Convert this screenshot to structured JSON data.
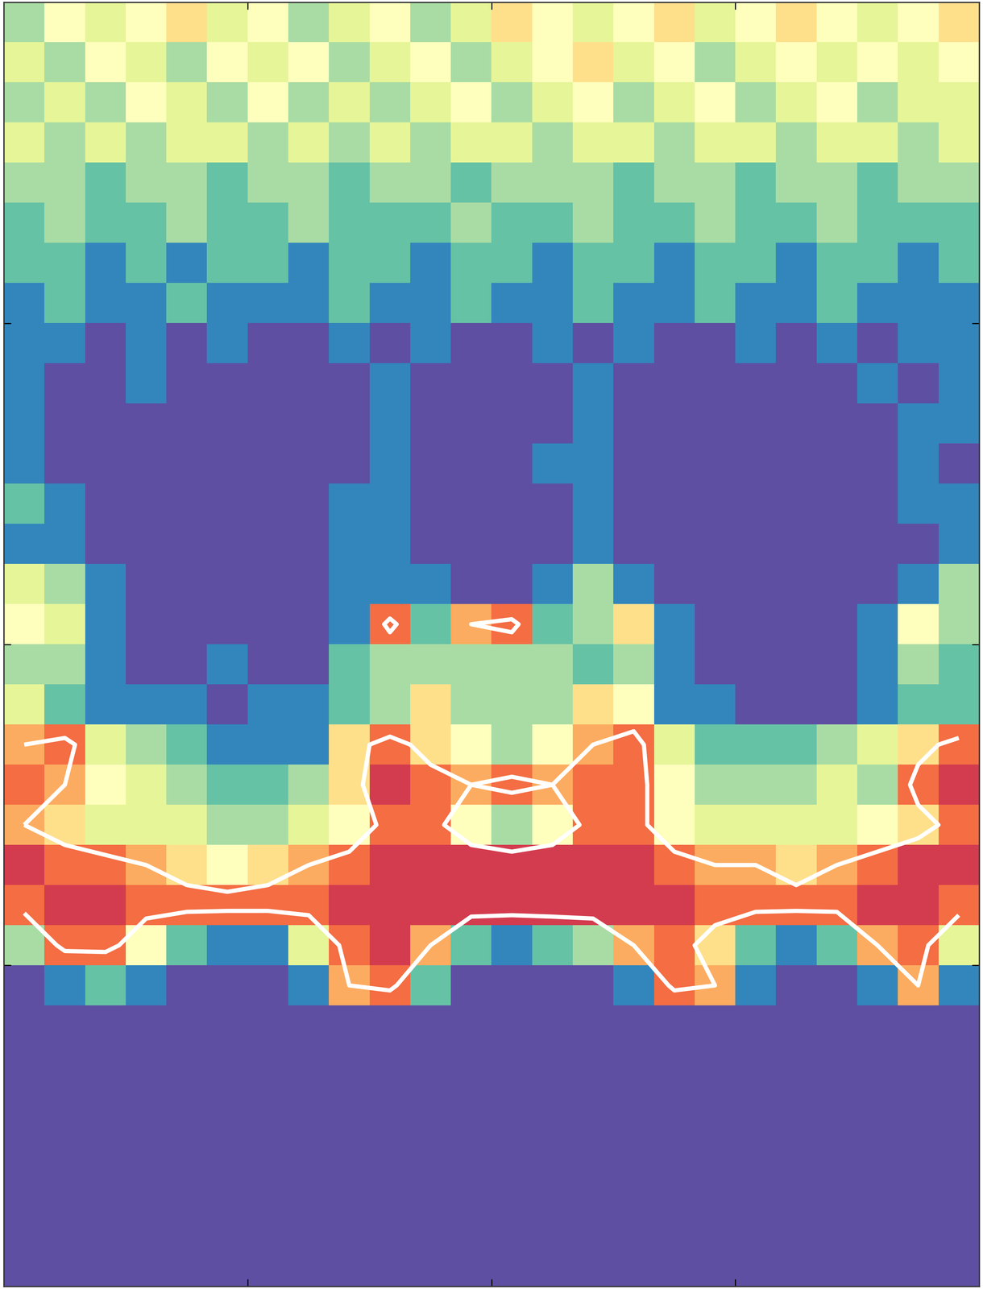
{
  "chart_data": {
    "type": "heatmap",
    "xlim": [
      0,
      4
    ],
    "ylim": [
      0,
      4
    ],
    "xticks": [
      1,
      2,
      3
    ],
    "yticks": [
      1,
      2,
      3
    ],
    "tick_labels": false,
    "color_range": [
      0,
      10
    ],
    "contour_levels": [
      7
    ],
    "cells": [
      [
        3,
        5,
        4,
        5,
        6,
        4,
        5,
        3,
        4,
        5,
        3,
        4,
        6,
        5,
        4,
        5,
        6,
        4,
        5,
        6,
        5,
        4,
        5,
        6
      ],
      [
        4,
        3,
        5,
        4,
        3,
        5,
        4,
        5,
        3,
        4,
        5,
        3,
        4,
        5,
        6,
        4,
        5,
        3,
        4,
        5,
        4,
        5,
        4,
        5
      ],
      [
        3,
        4,
        3,
        5,
        4,
        3,
        5,
        3,
        4,
        3,
        4,
        5,
        3,
        4,
        5,
        3,
        4,
        5,
        3,
        4,
        5,
        3,
        4,
        4
      ],
      [
        4,
        3,
        4,
        3,
        4,
        4,
        3,
        4,
        3,
        4,
        3,
        4,
        4,
        3,
        4,
        4,
        3,
        4,
        4,
        3,
        4,
        4,
        3,
        4
      ],
      [
        3,
        3,
        2,
        3,
        3,
        2,
        3,
        3,
        2,
        3,
        3,
        2,
        3,
        3,
        3,
        2,
        3,
        3,
        2,
        3,
        3,
        2,
        3,
        3
      ],
      [
        2,
        3,
        2,
        2,
        3,
        2,
        2,
        3,
        2,
        2,
        2,
        3,
        2,
        2,
        3,
        2,
        2,
        3,
        2,
        2,
        3,
        2,
        2,
        2
      ],
      [
        2,
        2,
        1,
        2,
        1,
        2,
        2,
        1,
        2,
        2,
        1,
        2,
        2,
        1,
        2,
        2,
        1,
        2,
        2,
        1,
        2,
        2,
        1,
        2
      ],
      [
        1,
        2,
        1,
        1,
        2,
        1,
        1,
        1,
        2,
        1,
        1,
        2,
        1,
        1,
        2,
        1,
        1,
        2,
        1,
        1,
        2,
        1,
        1,
        1
      ],
      [
        1,
        1,
        0,
        1,
        0,
        1,
        0,
        0,
        1,
        0,
        1,
        0,
        0,
        1,
        0,
        1,
        0,
        0,
        1,
        0,
        1,
        0,
        1,
        1
      ],
      [
        1,
        0,
        0,
        1,
        0,
        0,
        0,
        0,
        0,
        1,
        0,
        0,
        0,
        0,
        1,
        0,
        0,
        0,
        0,
        0,
        0,
        1,
        0,
        1
      ],
      [
        1,
        0,
        0,
        0,
        0,
        0,
        0,
        0,
        0,
        1,
        0,
        0,
        0,
        0,
        1,
        0,
        0,
        0,
        0,
        0,
        0,
        0,
        1,
        1
      ],
      [
        1,
        0,
        0,
        0,
        0,
        0,
        0,
        0,
        0,
        1,
        0,
        0,
        0,
        1,
        1,
        0,
        0,
        0,
        0,
        0,
        0,
        0,
        1,
        0
      ],
      [
        2,
        1,
        0,
        0,
        0,
        0,
        0,
        0,
        1,
        1,
        0,
        0,
        0,
        0,
        1,
        0,
        0,
        0,
        0,
        0,
        0,
        0,
        1,
        1
      ],
      [
        1,
        1,
        0,
        0,
        0,
        0,
        0,
        0,
        1,
        1,
        0,
        0,
        0,
        0,
        1,
        0,
        0,
        0,
        0,
        0,
        0,
        0,
        0,
        1
      ],
      [
        4,
        3,
        1,
        0,
        0,
        0,
        0,
        0,
        1,
        1,
        1,
        0,
        0,
        1,
        3,
        1,
        0,
        0,
        0,
        0,
        0,
        0,
        1,
        3
      ],
      [
        5,
        4,
        1,
        0,
        0,
        0,
        0,
        0,
        1,
        8,
        2,
        7,
        8,
        2,
        3,
        6,
        1,
        0,
        0,
        0,
        0,
        1,
        5,
        3
      ],
      [
        3,
        3,
        1,
        0,
        0,
        1,
        0,
        0,
        2,
        3,
        3,
        3,
        3,
        3,
        2,
        3,
        1,
        0,
        0,
        0,
        0,
        1,
        3,
        2
      ],
      [
        4,
        2,
        1,
        1,
        1,
        0,
        1,
        1,
        2,
        3,
        6,
        3,
        3,
        3,
        6,
        5,
        1,
        1,
        0,
        0,
        0,
        1,
        2,
        2
      ],
      [
        7,
        8,
        4,
        3,
        2,
        1,
        1,
        1,
        6,
        8,
        6,
        5,
        3,
        5,
        7,
        8,
        4,
        2,
        2,
        2,
        3,
        4,
        6,
        8
      ],
      [
        8,
        7,
        5,
        4,
        3,
        2,
        2,
        3,
        6,
        9,
        8,
        7,
        8,
        7,
        8,
        8,
        5,
        3,
        3,
        3,
        4,
        3,
        8,
        9
      ],
      [
        7,
        6,
        4,
        4,
        4,
        3,
        3,
        4,
        5,
        8,
        8,
        5,
        3,
        5,
        8,
        8,
        5,
        4,
        4,
        4,
        4,
        5,
        6,
        8
      ],
      [
        9,
        8,
        8,
        7,
        6,
        5,
        6,
        7,
        8,
        9,
        9,
        9,
        9,
        9,
        9,
        9,
        8,
        7,
        7,
        6,
        7,
        8,
        9,
        9
      ],
      [
        8,
        9,
        9,
        8,
        8,
        8,
        8,
        8,
        9,
        9,
        9,
        9,
        9,
        9,
        9,
        9,
        9,
        8,
        8,
        8,
        8,
        9,
        9,
        8
      ],
      [
        3,
        8,
        8,
        5,
        2,
        1,
        1,
        4,
        8,
        9,
        7,
        2,
        1,
        2,
        3,
        7,
        8,
        6,
        2,
        1,
        2,
        7,
        8,
        4
      ],
      [
        0,
        1,
        2,
        1,
        0,
        0,
        0,
        1,
        7,
        8,
        2,
        0,
        0,
        0,
        0,
        1,
        8,
        7,
        1,
        0,
        0,
        1,
        7,
        1
      ],
      [
        0,
        0,
        0,
        0,
        0,
        0,
        0,
        0,
        0,
        0,
        0,
        0,
        0,
        0,
        0,
        0,
        0,
        0,
        0,
        0,
        0,
        0,
        0,
        0
      ],
      [
        0,
        0,
        0,
        0,
        0,
        0,
        0,
        0,
        0,
        0,
        0,
        0,
        0,
        0,
        0,
        0,
        0,
        0,
        0,
        0,
        0,
        0,
        0,
        0
      ],
      [
        0,
        0,
        0,
        0,
        0,
        0,
        0,
        0,
        0,
        0,
        0,
        0,
        0,
        0,
        0,
        0,
        0,
        0,
        0,
        0,
        0,
        0,
        0,
        0
      ],
      [
        0,
        0,
        0,
        0,
        0,
        0,
        0,
        0,
        0,
        0,
        0,
        0,
        0,
        0,
        0,
        0,
        0,
        0,
        0,
        0,
        0,
        0,
        0,
        0
      ],
      [
        0,
        0,
        0,
        0,
        0,
        0,
        0,
        0,
        0,
        0,
        0,
        0,
        0,
        0,
        0,
        0,
        0,
        0,
        0,
        0,
        0,
        0,
        0,
        0
      ],
      [
        0,
        0,
        0,
        0,
        0,
        0,
        0,
        0,
        0,
        0,
        0,
        0,
        0,
        0,
        0,
        0,
        0,
        0,
        0,
        0,
        0,
        0,
        0,
        0
      ],
      [
        0,
        0,
        0,
        0,
        0,
        0,
        0,
        0,
        0,
        0,
        0,
        0,
        0,
        0,
        0,
        0,
        0,
        0,
        0,
        0,
        0,
        0,
        0,
        0
      ]
    ]
  }
}
